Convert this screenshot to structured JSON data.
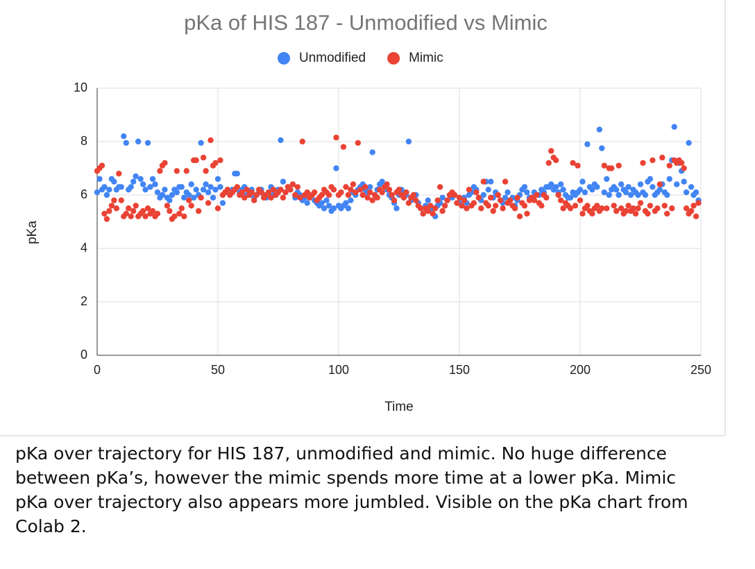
{
  "chart_data": {
    "type": "scatter",
    "title": "pKa of HIS 187 - Unmodified vs Mimic",
    "x_label": "Time",
    "y_label": "pKa",
    "xlim": [
      0,
      250
    ],
    "xticks": [
      0,
      50,
      100,
      150,
      200,
      250
    ],
    "ylim": [
      0,
      10
    ],
    "yticks": [
      0,
      2,
      4,
      6,
      8,
      10
    ],
    "grid": true,
    "legend": "top",
    "x": [
      0,
      1,
      2,
      3,
      4,
      5,
      6,
      7,
      8,
      9,
      10,
      11,
      12,
      13,
      14,
      15,
      16,
      17,
      18,
      19,
      20,
      21,
      22,
      23,
      24,
      25,
      26,
      27,
      28,
      29,
      30,
      31,
      32,
      33,
      34,
      35,
      36,
      37,
      38,
      39,
      40,
      41,
      42,
      43,
      44,
      45,
      46,
      47,
      48,
      49,
      50,
      51,
      52,
      53,
      54,
      55,
      56,
      57,
      58,
      59,
      60,
      61,
      62,
      63,
      64,
      65,
      66,
      67,
      68,
      69,
      70,
      71,
      72,
      73,
      74,
      75,
      76,
      77,
      78,
      79,
      80,
      81,
      82,
      83,
      84,
      85,
      86,
      87,
      88,
      89,
      90,
      91,
      92,
      93,
      94,
      95,
      96,
      97,
      98,
      99,
      100,
      101,
      102,
      103,
      104,
      105,
      106,
      107,
      108,
      109,
      110,
      111,
      112,
      113,
      114,
      115,
      116,
      117,
      118,
      119,
      120,
      121,
      122,
      123,
      124,
      125,
      126,
      127,
      128,
      129,
      130,
      131,
      132,
      133,
      134,
      135,
      136,
      137,
      138,
      139,
      140,
      141,
      142,
      143,
      144,
      145,
      146,
      147,
      148,
      149,
      150,
      151,
      152,
      153,
      154,
      155,
      156,
      157,
      158,
      159,
      160,
      161,
      162,
      163,
      164,
      165,
      166,
      167,
      168,
      169,
      170,
      171,
      172,
      173,
      174,
      175,
      176,
      177,
      178,
      179,
      180,
      181,
      182,
      183,
      184,
      185,
      186,
      187,
      188,
      189,
      190,
      191,
      192,
      193,
      194,
      195,
      196,
      197,
      198,
      199,
      200,
      201,
      202,
      203,
      204,
      205,
      206,
      207,
      208,
      209,
      210,
      211,
      212,
      213,
      214,
      215,
      216,
      217,
      218,
      219,
      220,
      221,
      222,
      223,
      224,
      225,
      226,
      227,
      228,
      229,
      230,
      231,
      232,
      233,
      234,
      235,
      236,
      237,
      238,
      239,
      240,
      241,
      242,
      243,
      244,
      245,
      246,
      247,
      248,
      249
    ],
    "series": [
      {
        "name": "Unmodified",
        "color": "#4285f4",
        "values": [
          6.1,
          6.6,
          6.2,
          6.3,
          6.0,
          6.2,
          6.6,
          6.5,
          6.2,
          6.3,
          6.3,
          8.2,
          7.95,
          6.2,
          6.3,
          6.5,
          6.7,
          8.0,
          6.6,
          6.4,
          6.2,
          7.95,
          6.3,
          6.6,
          6.4,
          6.1,
          5.9,
          6.0,
          6.2,
          5.9,
          5.8,
          6.0,
          6.2,
          6.1,
          6.3,
          6.3,
          5.9,
          6.1,
          6.0,
          6.4,
          5.9,
          6.2,
          6.0,
          7.95,
          6.2,
          6.4,
          6.1,
          6.3,
          5.9,
          6.2,
          6.6,
          6.3,
          5.7,
          6.1,
          6.2,
          6.0,
          6.2,
          6.8,
          6.8,
          6.1,
          6.2,
          6.3,
          6.0,
          6.1,
          6.2,
          5.9,
          6.0,
          6.1,
          6.2,
          6.0,
          5.9,
          6.1,
          6.3,
          6.0,
          6.1,
          6.2,
          8.05,
          6.5,
          6.1,
          6.3,
          6.2,
          6.4,
          5.9,
          6.1,
          6.0,
          5.8,
          5.9,
          5.7,
          5.9,
          6.0,
          5.8,
          5.7,
          5.6,
          5.7,
          5.5,
          5.8,
          5.6,
          5.4,
          5.5,
          7.0,
          5.6,
          5.5,
          5.6,
          5.7,
          5.5,
          5.8,
          6.1,
          6.0,
          6.2,
          6.3,
          6.4,
          6.2,
          6.1,
          6.3,
          7.6,
          6.0,
          6.2,
          6.4,
          6.5,
          6.3,
          6.2,
          6.0,
          5.9,
          5.7,
          5.5,
          6.0,
          6.2,
          6.1,
          6.0,
          8.0,
          5.8,
          5.9,
          6.0,
          5.7,
          5.5,
          5.3,
          5.6,
          5.8,
          5.4,
          5.5,
          5.2,
          5.6,
          5.7,
          5.9,
          5.6,
          5.8,
          6.0,
          5.9,
          6.0,
          5.7,
          5.7,
          5.6,
          5.9,
          5.7,
          6.0,
          6.1,
          6.3,
          6.2,
          5.9,
          5.8,
          6.0,
          6.5,
          6.2,
          6.5,
          5.9,
          6.1,
          6.0,
          5.8,
          5.7,
          5.9,
          6.1,
          5.8,
          5.9,
          5.6,
          5.8,
          6.0,
          6.2,
          6.3,
          6.1,
          5.9,
          5.9,
          6.1,
          6.0,
          6.0,
          6.2,
          6.1,
          6.3,
          6.3,
          6.4,
          6.2,
          6.3,
          6.1,
          6.4,
          6.2,
          6.0,
          5.9,
          5.9,
          6.1,
          6.0,
          6.1,
          6.2,
          6.5,
          6.1,
          7.9,
          6.3,
          6.2,
          6.4,
          6.3,
          8.45,
          7.75,
          6.1,
          6.6,
          6.0,
          6.2,
          6.3,
          6.2,
          6.0,
          6.4,
          6.2,
          6.1,
          6.3,
          6.0,
          6.2,
          6.1,
          6.0,
          6.4,
          6.1,
          6.0,
          6.5,
          6.6,
          6.3,
          6.0,
          6.1,
          6.2,
          6.4,
          6.1,
          6.0,
          6.6,
          7.3,
          8.55,
          6.4,
          7.2,
          6.9,
          6.5,
          6.1,
          7.95,
          6.3,
          6.0,
          6.1,
          5.8
        ]
      },
      {
        "name": "Mimic",
        "color": "#ea4335",
        "values": [
          6.9,
          7.0,
          7.1,
          5.3,
          5.1,
          5.4,
          5.6,
          5.8,
          5.5,
          6.8,
          5.8,
          5.2,
          5.3,
          5.5,
          5.2,
          5.4,
          5.6,
          5.2,
          5.3,
          5.4,
          5.2,
          5.5,
          5.3,
          5.4,
          5.2,
          5.3,
          6.9,
          7.1,
          7.2,
          5.6,
          5.4,
          5.1,
          5.2,
          6.9,
          5.3,
          5.5,
          5.2,
          6.9,
          5.8,
          5.6,
          7.3,
          7.3,
          5.4,
          5.9,
          7.4,
          6.9,
          5.7,
          8.05,
          7.1,
          7.2,
          5.5,
          7.3,
          6.0,
          6.1,
          6.2,
          6.0,
          6.1,
          6.2,
          6.3,
          6.0,
          6.1,
          5.9,
          6.2,
          6.0,
          6.1,
          5.8,
          6.0,
          6.2,
          6.1,
          5.9,
          6.0,
          6.1,
          5.9,
          6.2,
          6.0,
          6.1,
          6.2,
          5.9,
          6.1,
          6.3,
          6.2,
          6.4,
          6.0,
          6.3,
          5.9,
          8.0,
          6.0,
          6.1,
          5.9,
          6.0,
          6.1,
          5.8,
          5.9,
          6.0,
          6.2,
          6.1,
          6.0,
          6.3,
          6.2,
          8.15,
          6.0,
          6.1,
          7.8,
          6.3,
          6.0,
          6.2,
          6.4,
          6.1,
          7.95,
          6.2,
          6.0,
          6.3,
          5.9,
          6.1,
          5.8,
          6.0,
          5.9,
          6.2,
          6.1,
          6.3,
          6.4,
          6.2,
          6.0,
          5.8,
          6.1,
          6.2,
          6.0,
          5.9,
          6.1,
          5.7,
          5.9,
          6.0,
          5.8,
          5.6,
          5.5,
          5.3,
          5.5,
          5.4,
          5.6,
          5.3,
          5.5,
          5.8,
          6.3,
          5.4,
          5.6,
          5.8,
          6.0,
          6.1,
          6.0,
          5.7,
          5.9,
          5.6,
          5.8,
          5.5,
          6.2,
          5.6,
          5.7,
          6.1,
          5.9,
          5.5,
          6.5,
          5.7,
          5.6,
          5.9,
          5.4,
          5.6,
          6.0,
          5.8,
          5.5,
          6.5,
          5.7,
          5.8,
          5.6,
          5.5,
          5.9,
          5.2,
          5.7,
          5.6,
          5.3,
          5.8,
          5.9,
          5.8,
          6.0,
          5.7,
          5.6,
          6.0,
          5.9,
          7.2,
          7.65,
          7.4,
          7.3,
          6.0,
          5.8,
          5.5,
          5.7,
          5.6,
          5.5,
          7.2,
          5.6,
          7.1,
          5.8,
          5.3,
          5.5,
          5.6,
          5.4,
          5.3,
          5.5,
          5.6,
          5.4,
          5.5,
          7.1,
          5.5,
          7.0,
          7.0,
          5.6,
          5.4,
          7.1,
          5.5,
          5.3,
          5.4,
          5.6,
          5.4,
          5.5,
          5.3,
          5.5,
          5.7,
          7.2,
          5.4,
          5.3,
          5.6,
          7.3,
          5.4,
          5.5,
          6.4,
          7.4,
          5.6,
          5.3,
          7.1,
          5.5,
          7.3,
          7.2,
          7.3,
          7.2,
          7.0,
          5.5,
          5.3,
          5.4,
          5.6,
          5.2,
          5.7
        ]
      }
    ]
  },
  "caption": [
    "pKa over trajectory for HIS 187, unmodified and mimic. No huge difference",
    "between pKa’s, however the mimic spends more time at a lower pKa. Mimic",
    "pKa over trajectory also appears more jumbled. Visible on the pKa chart from",
    "Colab 2."
  ]
}
